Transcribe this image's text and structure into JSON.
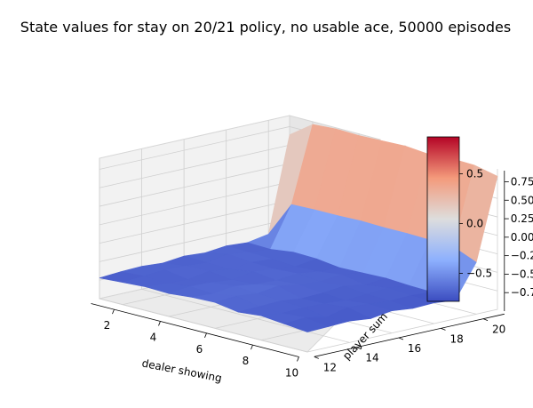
{
  "chart_data": {
    "type": "surface3d",
    "title": "State values for stay on 20/21 policy, no usable ace, 50000 episodes",
    "xlabel": "dealer showing",
    "ylabel": "player sum",
    "zlabel": "",
    "x": [
      1,
      2,
      3,
      4,
      5,
      6,
      7,
      8,
      9,
      10
    ],
    "y": [
      12,
      13,
      14,
      15,
      16,
      17,
      18,
      19,
      20,
      21
    ],
    "xticks": [
      "2",
      "4",
      "6",
      "8",
      "10"
    ],
    "yticks": [
      "12",
      "14",
      "16",
      "18",
      "20"
    ],
    "zticks": [
      "−0.75",
      "−0.50",
      "−0.25",
      "0.00",
      "0.25",
      "0.50",
      "0.75"
    ],
    "zlim": [
      -1.0,
      0.9
    ],
    "colormap": "coolwarm",
    "colorbar": {
      "ticks": [
        "−0.5",
        "0.0",
        "0.5"
      ],
      "range": [
        -0.78,
        0.87
      ]
    },
    "values": [
      [
        -0.72,
        -0.7,
        -0.68,
        -0.69,
        -0.66,
        -0.65,
        -0.7,
        -0.67,
        -0.7,
        -0.73
      ],
      [
        -0.7,
        -0.68,
        -0.7,
        -0.66,
        -0.68,
        -0.63,
        -0.69,
        -0.7,
        -0.68,
        -0.72
      ],
      [
        -0.69,
        -0.66,
        -0.71,
        -0.67,
        -0.64,
        -0.66,
        -0.68,
        -0.69,
        -0.74,
        -0.71
      ],
      [
        -0.71,
        -0.67,
        -0.66,
        -0.7,
        -0.68,
        -0.62,
        -0.71,
        -0.7,
        -0.67,
        -0.74
      ],
      [
        -0.68,
        -0.69,
        -0.7,
        -0.65,
        -0.69,
        -0.67,
        -0.7,
        -0.72,
        -0.69,
        -0.7
      ],
      [
        -0.7,
        -0.64,
        -0.67,
        -0.68,
        -0.66,
        -0.69,
        -0.67,
        -0.7,
        -0.71,
        -0.73
      ],
      [
        -0.67,
        -0.68,
        -0.69,
        -0.71,
        -0.7,
        -0.66,
        -0.72,
        -0.68,
        -0.7,
        -0.72
      ],
      [
        -0.69,
        -0.7,
        -0.66,
        -0.67,
        -0.71,
        -0.7,
        -0.69,
        -0.71,
        -0.72,
        -0.75
      ],
      [
        -0.64,
        -0.16,
        -0.15,
        -0.15,
        -0.14,
        -0.15,
        -0.15,
        -0.16,
        -0.17,
        -0.3
      ],
      [
        0.64,
        0.86,
        0.88,
        0.87,
        0.88,
        0.89,
        0.86,
        0.88,
        0.87,
        0.8
      ]
    ]
  }
}
